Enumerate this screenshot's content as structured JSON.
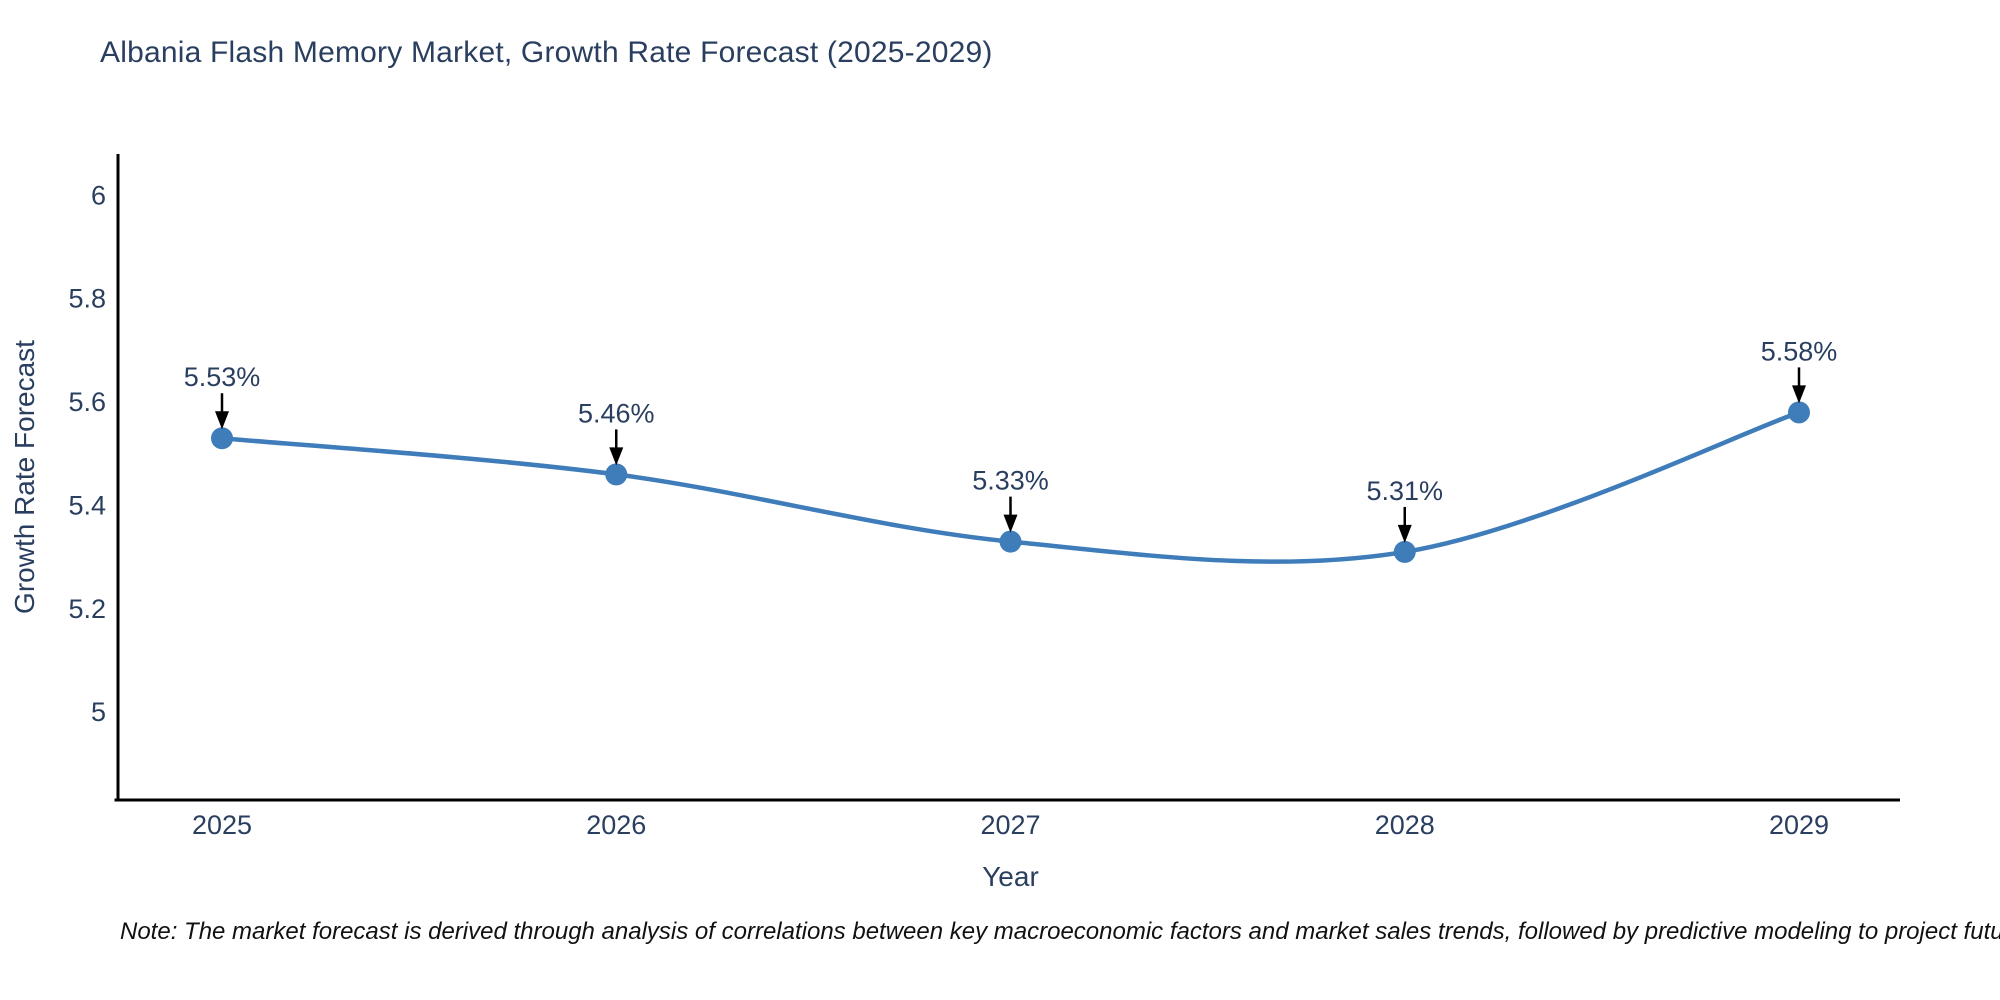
{
  "page": {
    "title": "Albania Flash Memory Market, Growth Rate Forecast (2025-2029)",
    "note": "Note: The market forecast is derived through analysis of correlations between key macroeconomic factors and market sales trends, followed by predictive modeling to project future sales"
  },
  "chart_data": {
    "type": "line",
    "title": "Albania Flash Memory Market, Growth Rate Forecast (2025-2029)",
    "xlabel": "Year",
    "ylabel": "Growth Rate Forecast",
    "x": [
      2025,
      2026,
      2027,
      2028,
      2029
    ],
    "series": [
      {
        "name": "Growth Rate Forecast",
        "values": [
          5.53,
          5.46,
          5.33,
          5.31,
          5.58
        ],
        "point_labels": [
          "5.53%",
          "5.46%",
          "5.33%",
          "5.31%",
          "5.58%"
        ]
      }
    ],
    "xtick_labels": [
      "2025",
      "2026",
      "2027",
      "2028",
      "2029"
    ],
    "yticks": [
      5,
      5.2,
      5.4,
      5.6,
      5.8,
      6
    ],
    "ytick_labels": [
      "5",
      "5.2",
      "5.4",
      "5.6",
      "5.8",
      "6"
    ],
    "ylim": [
      4.83,
      6.08
    ],
    "grid": false,
    "legend": false,
    "line_shape": "spline",
    "annotations_have_arrows": true,
    "colors": {
      "line": "#3e7cba",
      "marker": "#3e7cba",
      "axis": "#000000",
      "tick_text": "#2a3f5f",
      "title_text": "#2a3f5f",
      "annotation_text": "#2a3f5f",
      "arrow": "#000000",
      "note_text": "#111111",
      "background": "#ffffff"
    }
  }
}
